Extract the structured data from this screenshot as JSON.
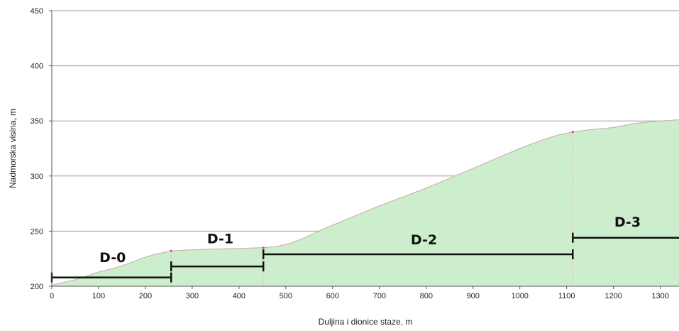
{
  "chart_data": {
    "type": "area",
    "title": "",
    "xlabel": "Duljina i dionice staze, m",
    "ylabel": "Nadmorska visina, m",
    "xlim": [
      0,
      1340
    ],
    "ylim": [
      200,
      450
    ],
    "x_ticks": [
      0,
      100,
      200,
      300,
      400,
      500,
      600,
      700,
      800,
      900,
      1000,
      1100,
      1200,
      1300
    ],
    "y_ticks": [
      200,
      250,
      300,
      350,
      400,
      450
    ],
    "grid": "horizontal",
    "colors": {
      "fill": "#cdeecd",
      "line": "#c9a8a8",
      "marker": "#e05050",
      "segment": "#111111",
      "grid": "#9a9a9a"
    },
    "series": [
      {
        "x": [
          0,
          20,
          50,
          80,
          100,
          130,
          160,
          190,
          220,
          255,
          290,
          330,
          370,
          410,
          452,
          480,
          510,
          540,
          580,
          620,
          660,
          700,
          750,
          800,
          850,
          900,
          950,
          1000,
          1050,
          1080,
          1113,
          1150,
          1200,
          1250,
          1300,
          1340
        ],
        "y": [
          201,
          203,
          206,
          210,
          213,
          216,
          220,
          225,
          229,
          232,
          233,
          233.5,
          234,
          234.5,
          235,
          236,
          239,
          244,
          252,
          259,
          266,
          273,
          281,
          289,
          298,
          307,
          316,
          325,
          333,
          337,
          340,
          342,
          344,
          348,
          350,
          351
        ]
      }
    ],
    "point_markers": [
      {
        "x": 255,
        "y": 232
      },
      {
        "x": 452,
        "y": 235
      },
      {
        "x": 1113,
        "y": 340
      }
    ],
    "boundaries": [
      255,
      452,
      1113
    ],
    "segments": [
      {
        "label": "D-0",
        "x_start": 0,
        "x_end": 255,
        "y": 208,
        "label_x": 130,
        "label_y": 222
      },
      {
        "label": "D-1",
        "x_start": 255,
        "x_end": 452,
        "y": 218,
        "label_x": 360,
        "label_y": 239
      },
      {
        "label": "D-2",
        "x_start": 452,
        "x_end": 1113,
        "y": 229,
        "label_x": 795,
        "label_y": 238
      },
      {
        "label": "D-3",
        "x_start": 1113,
        "x_end": 1340,
        "y": 244,
        "label_x": 1230,
        "label_y": 254
      }
    ]
  }
}
